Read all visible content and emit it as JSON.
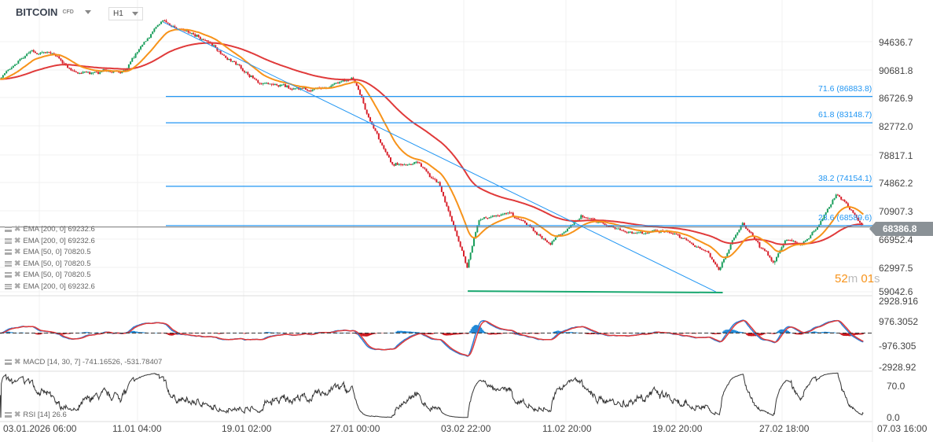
{
  "header": {
    "symbol": "BITCOIN",
    "instrument_type": "CFD",
    "timeframe": "H1"
  },
  "indicators": {
    "price_legend": [
      "EMA [200, 0] 69232.6",
      "EMA [200, 0] 69232.6",
      "EMA [50, 0] 70820.5",
      "EMA [50, 0] 70820.5",
      "EMA [50, 0] 70820.5",
      "EMA [200, 0] 69232.6"
    ],
    "macd_legend": "MACD [14, 30, 7] -741.16526, -531.78407",
    "rsi_legend": "RSI [14] 26.6"
  },
  "countdown": {
    "minutes": "52",
    "m": "m",
    "seconds": "01",
    "s": "s"
  },
  "current_price": "68386.8",
  "colors": {
    "up": "#1a9e5c",
    "down": "#d81f2a",
    "ema50": "#f7931a",
    "ema200": "#e03a3a",
    "fib": "#2196f3",
    "trend_support": "#1aa870",
    "macd": "#2c7fd6",
    "signal": "#e03a3a"
  },
  "chart_data": {
    "type": "candlestick",
    "price_axis": {
      "ticks": [
        "94636.7",
        "90681.8",
        "86726.9",
        "82772.0",
        "78817.1",
        "74862.2",
        "70907.3",
        "66952.4",
        "62997.5",
        "59042.6"
      ]
    },
    "time_axis": {
      "ticks": [
        "03.01.2026  06:00",
        "11.01  04:00",
        "19.01  02:00",
        "27.01  00:00",
        "03.02  22:00",
        "11.02  20:00",
        "19.02  20:00",
        "27.02  18:00",
        "07.03  16:00"
      ]
    },
    "approx_close_path": [
      [
        "2025-12-31 09:00",
        89400
      ],
      [
        "2026-01-02 16:00",
        93300
      ],
      [
        "2026-01-04 10:00",
        92750
      ],
      [
        "2026-01-06 03:00",
        90000
      ],
      [
        "2026-01-09 15:00",
        90500
      ],
      [
        "2026-01-11 08:00",
        95500
      ],
      [
        "2026-01-12 09:00",
        97400
      ],
      [
        "2026-01-15 09:00",
        95000
      ],
      [
        "2026-01-17 17:00",
        91600
      ],
      [
        "2026-01-19 10:00",
        88800
      ],
      [
        "2026-01-23 11:00",
        87700
      ],
      [
        "2026-01-26 09:00",
        89400
      ],
      [
        "2026-01-27 13:00",
        83800
      ],
      [
        "2026-01-29 06:00",
        77100
      ],
      [
        "2026-01-31 00:00",
        77700
      ],
      [
        "2026-02-01 17:00",
        74400
      ],
      [
        "2026-02-03 18:00",
        62700
      ],
      [
        "2026-02-04 15:00",
        69350
      ],
      [
        "2026-02-06 22:00",
        70450
      ],
      [
        "2026-02-09 20:00",
        66000
      ],
      [
        "2026-02-12 03:00",
        69900
      ],
      [
        "2026-02-15 14:00",
        67700
      ],
      [
        "2026-02-18 12:00",
        67700
      ],
      [
        "2026-02-21 09:00",
        64900
      ],
      [
        "2026-02-22 06:00",
        62700
      ],
      [
        "2026-02-23 23:00",
        68800
      ],
      [
        "2026-02-26 07:00",
        63200
      ],
      [
        "2026-02-27 04:00",
        66600
      ],
      [
        "2026-02-28 07:00",
        66000
      ],
      [
        "2026-03-01 11:00",
        68200
      ],
      [
        "2026-03-02 22:00",
        73200
      ],
      [
        "2026-03-04 02:00",
        70450
      ],
      [
        "2026-03-04 20:00",
        68386.8
      ]
    ],
    "fibonacci": [
      {
        "label": "71.6 (86883.8)",
        "level": 86883.8
      },
      {
        "label": "61.8 (83148.7)",
        "level": 83148.7
      },
      {
        "label": "38.2 (74154.1)",
        "level": 74154.1
      },
      {
        "label": "23.6 (68589.6)",
        "level": 68589.6
      }
    ],
    "trendline": {
      "from": [
        "2026-01-12 09:00",
        97400
      ],
      "to": [
        "2026-02-22 00:00",
        59200
      ]
    },
    "support_line": {
      "from": [
        "2026-02-03 18:00",
        59300
      ],
      "to": [
        "2026-02-22 12:00",
        59100
      ]
    },
    "macd": {
      "params": [
        14,
        30,
        7
      ],
      "ticks": [
        "2928.916",
        "976.3052",
        "-976.305",
        "-2928.92"
      ],
      "last": [
        -741.16526,
        -531.78407
      ]
    },
    "rsi": {
      "period": 14,
      "ticks": [
        "70.0",
        "0.0"
      ],
      "last": 26.6
    }
  }
}
